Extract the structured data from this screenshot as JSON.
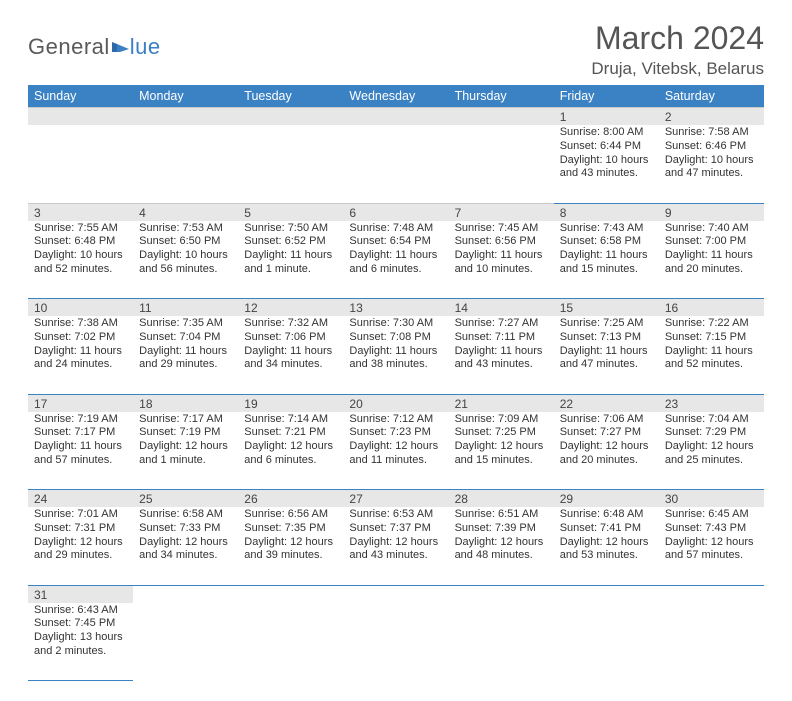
{
  "brand": {
    "word1": "General",
    "word2": "lue"
  },
  "title": "March 2024",
  "location": "Druja, Vitebsk, Belarus",
  "colors": {
    "header_bg": "#3b82c4",
    "header_fg": "#ffffff",
    "daynum_bg": "#e7e7e7",
    "rule": "#3b82c4",
    "logo_blue": "#3b7fc4",
    "logo_gray": "#5a5a5a"
  },
  "dow": [
    "Sunday",
    "Monday",
    "Tuesday",
    "Wednesday",
    "Thursday",
    "Friday",
    "Saturday"
  ],
  "weeks": [
    [
      null,
      null,
      null,
      null,
      null,
      {
        "n": "1",
        "r": "Sunrise: 8:00 AM",
        "s": "Sunset: 6:44 PM",
        "d1": "Daylight: 10 hours",
        "d2": "and 43 minutes."
      },
      {
        "n": "2",
        "r": "Sunrise: 7:58 AM",
        "s": "Sunset: 6:46 PM",
        "d1": "Daylight: 10 hours",
        "d2": "and 47 minutes."
      }
    ],
    [
      {
        "n": "3",
        "r": "Sunrise: 7:55 AM",
        "s": "Sunset: 6:48 PM",
        "d1": "Daylight: 10 hours",
        "d2": "and 52 minutes."
      },
      {
        "n": "4",
        "r": "Sunrise: 7:53 AM",
        "s": "Sunset: 6:50 PM",
        "d1": "Daylight: 10 hours",
        "d2": "and 56 minutes."
      },
      {
        "n": "5",
        "r": "Sunrise: 7:50 AM",
        "s": "Sunset: 6:52 PM",
        "d1": "Daylight: 11 hours",
        "d2": "and 1 minute."
      },
      {
        "n": "6",
        "r": "Sunrise: 7:48 AM",
        "s": "Sunset: 6:54 PM",
        "d1": "Daylight: 11 hours",
        "d2": "and 6 minutes."
      },
      {
        "n": "7",
        "r": "Sunrise: 7:45 AM",
        "s": "Sunset: 6:56 PM",
        "d1": "Daylight: 11 hours",
        "d2": "and 10 minutes."
      },
      {
        "n": "8",
        "r": "Sunrise: 7:43 AM",
        "s": "Sunset: 6:58 PM",
        "d1": "Daylight: 11 hours",
        "d2": "and 15 minutes."
      },
      {
        "n": "9",
        "r": "Sunrise: 7:40 AM",
        "s": "Sunset: 7:00 PM",
        "d1": "Daylight: 11 hours",
        "d2": "and 20 minutes."
      }
    ],
    [
      {
        "n": "10",
        "r": "Sunrise: 7:38 AM",
        "s": "Sunset: 7:02 PM",
        "d1": "Daylight: 11 hours",
        "d2": "and 24 minutes."
      },
      {
        "n": "11",
        "r": "Sunrise: 7:35 AM",
        "s": "Sunset: 7:04 PM",
        "d1": "Daylight: 11 hours",
        "d2": "and 29 minutes."
      },
      {
        "n": "12",
        "r": "Sunrise: 7:32 AM",
        "s": "Sunset: 7:06 PM",
        "d1": "Daylight: 11 hours",
        "d2": "and 34 minutes."
      },
      {
        "n": "13",
        "r": "Sunrise: 7:30 AM",
        "s": "Sunset: 7:08 PM",
        "d1": "Daylight: 11 hours",
        "d2": "and 38 minutes."
      },
      {
        "n": "14",
        "r": "Sunrise: 7:27 AM",
        "s": "Sunset: 7:11 PM",
        "d1": "Daylight: 11 hours",
        "d2": "and 43 minutes."
      },
      {
        "n": "15",
        "r": "Sunrise: 7:25 AM",
        "s": "Sunset: 7:13 PM",
        "d1": "Daylight: 11 hours",
        "d2": "and 47 minutes."
      },
      {
        "n": "16",
        "r": "Sunrise: 7:22 AM",
        "s": "Sunset: 7:15 PM",
        "d1": "Daylight: 11 hours",
        "d2": "and 52 minutes."
      }
    ],
    [
      {
        "n": "17",
        "r": "Sunrise: 7:19 AM",
        "s": "Sunset: 7:17 PM",
        "d1": "Daylight: 11 hours",
        "d2": "and 57 minutes."
      },
      {
        "n": "18",
        "r": "Sunrise: 7:17 AM",
        "s": "Sunset: 7:19 PM",
        "d1": "Daylight: 12 hours",
        "d2": "and 1 minute."
      },
      {
        "n": "19",
        "r": "Sunrise: 7:14 AM",
        "s": "Sunset: 7:21 PM",
        "d1": "Daylight: 12 hours",
        "d2": "and 6 minutes."
      },
      {
        "n": "20",
        "r": "Sunrise: 7:12 AM",
        "s": "Sunset: 7:23 PM",
        "d1": "Daylight: 12 hours",
        "d2": "and 11 minutes."
      },
      {
        "n": "21",
        "r": "Sunrise: 7:09 AM",
        "s": "Sunset: 7:25 PM",
        "d1": "Daylight: 12 hours",
        "d2": "and 15 minutes."
      },
      {
        "n": "22",
        "r": "Sunrise: 7:06 AM",
        "s": "Sunset: 7:27 PM",
        "d1": "Daylight: 12 hours",
        "d2": "and 20 minutes."
      },
      {
        "n": "23",
        "r": "Sunrise: 7:04 AM",
        "s": "Sunset: 7:29 PM",
        "d1": "Daylight: 12 hours",
        "d2": "and 25 minutes."
      }
    ],
    [
      {
        "n": "24",
        "r": "Sunrise: 7:01 AM",
        "s": "Sunset: 7:31 PM",
        "d1": "Daylight: 12 hours",
        "d2": "and 29 minutes."
      },
      {
        "n": "25",
        "r": "Sunrise: 6:58 AM",
        "s": "Sunset: 7:33 PM",
        "d1": "Daylight: 12 hours",
        "d2": "and 34 minutes."
      },
      {
        "n": "26",
        "r": "Sunrise: 6:56 AM",
        "s": "Sunset: 7:35 PM",
        "d1": "Daylight: 12 hours",
        "d2": "and 39 minutes."
      },
      {
        "n": "27",
        "r": "Sunrise: 6:53 AM",
        "s": "Sunset: 7:37 PM",
        "d1": "Daylight: 12 hours",
        "d2": "and 43 minutes."
      },
      {
        "n": "28",
        "r": "Sunrise: 6:51 AM",
        "s": "Sunset: 7:39 PM",
        "d1": "Daylight: 12 hours",
        "d2": "and 48 minutes."
      },
      {
        "n": "29",
        "r": "Sunrise: 6:48 AM",
        "s": "Sunset: 7:41 PM",
        "d1": "Daylight: 12 hours",
        "d2": "and 53 minutes."
      },
      {
        "n": "30",
        "r": "Sunrise: 6:45 AM",
        "s": "Sunset: 7:43 PM",
        "d1": "Daylight: 12 hours",
        "d2": "and 57 minutes."
      }
    ],
    [
      {
        "n": "31",
        "r": "Sunrise: 6:43 AM",
        "s": "Sunset: 7:45 PM",
        "d1": "Daylight: 13 hours",
        "d2": "and 2 minutes."
      },
      null,
      null,
      null,
      null,
      null,
      null
    ]
  ]
}
